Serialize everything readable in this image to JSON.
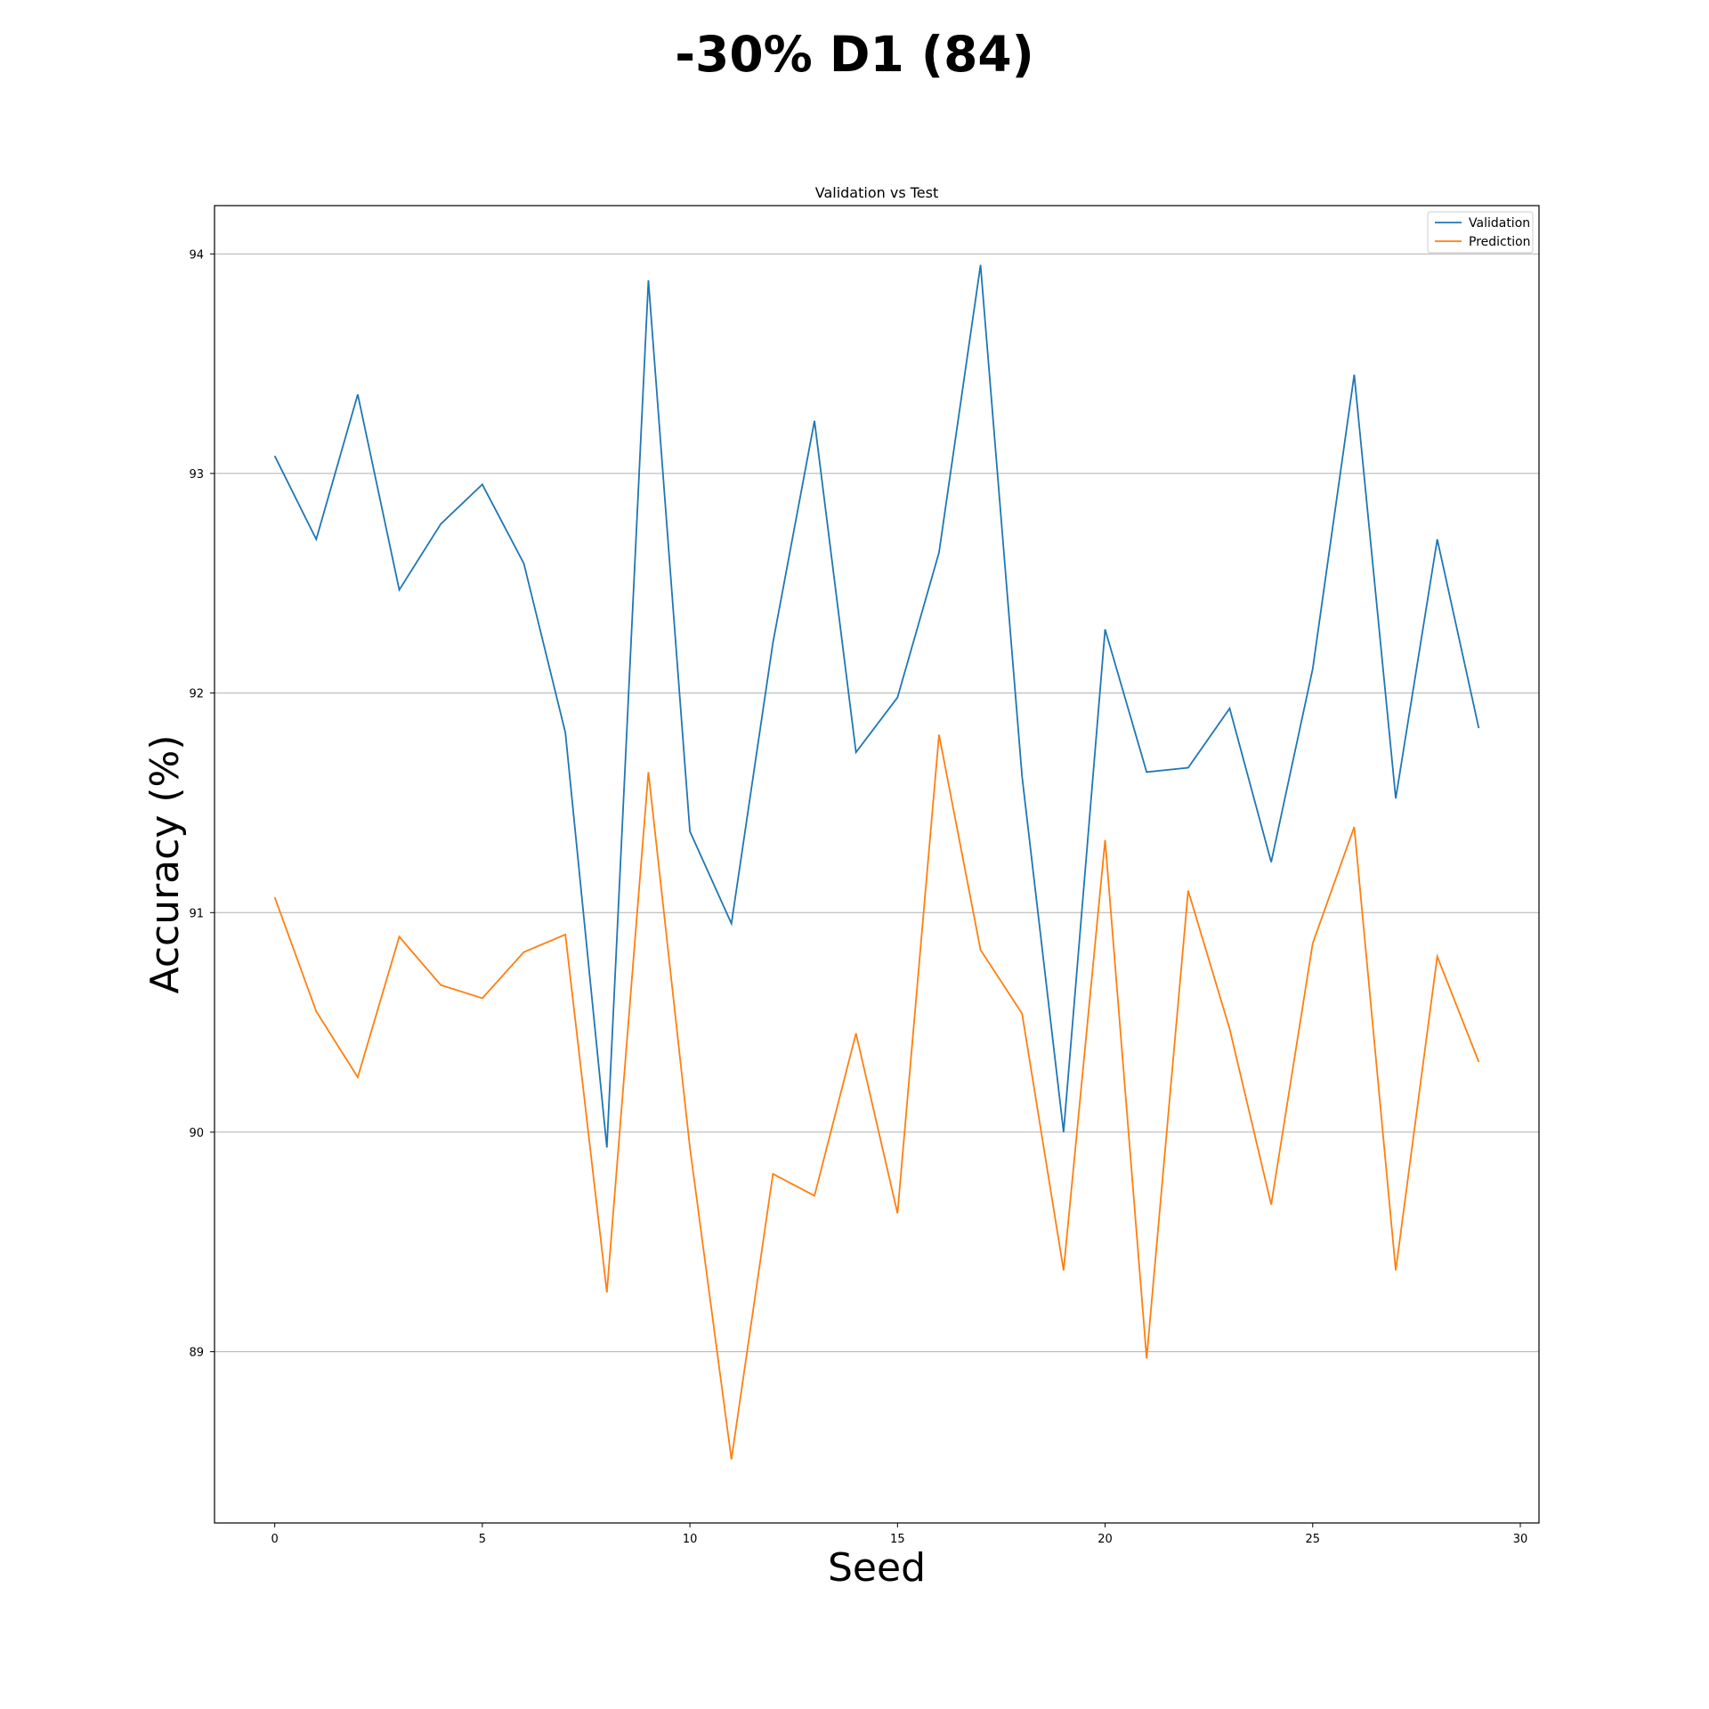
{
  "chart_data": {
    "type": "line",
    "suptitle": "-30% D1 (84)",
    "title": "Validation vs Test",
    "xlabel": "Seed",
    "ylabel": "Accuracy (%)",
    "xlim": [
      -1.45,
      30.45
    ],
    "ylim": [
      88.22,
      94.22
    ],
    "xticks": [
      0,
      5,
      10,
      15,
      20,
      25,
      30
    ],
    "yticks": [
      89,
      90,
      91,
      92,
      93,
      94
    ],
    "grid": "horizontal",
    "legend_position": "top-right",
    "x": [
      0,
      1,
      2,
      3,
      4,
      5,
      6,
      7,
      8,
      9,
      10,
      11,
      12,
      13,
      14,
      15,
      16,
      17,
      18,
      19,
      20,
      21,
      22,
      23,
      24,
      25,
      26,
      27,
      28,
      29
    ],
    "series": [
      {
        "name": "Validation",
        "color": "#1f77b4",
        "values": [
          93.08,
          92.7,
          93.36,
          92.47,
          92.77,
          92.95,
          92.59,
          91.82,
          89.93,
          93.88,
          91.37,
          90.95,
          92.23,
          93.24,
          91.73,
          91.98,
          92.64,
          93.95,
          91.62,
          90.0,
          92.29,
          91.64,
          91.66,
          91.93,
          91.23,
          92.11,
          93.45,
          91.52,
          92.7,
          91.84
        ]
      },
      {
        "name": "Prediction",
        "color": "#ff7f0e",
        "values": [
          91.07,
          90.55,
          90.25,
          90.89,
          90.67,
          90.61,
          90.82,
          90.9,
          89.27,
          91.64,
          89.93,
          88.51,
          89.81,
          89.71,
          90.45,
          89.63,
          91.81,
          90.83,
          90.54,
          89.37,
          91.33,
          88.97,
          91.1,
          90.47,
          89.67,
          90.86,
          91.39,
          89.37,
          90.8,
          90.32
        ]
      }
    ]
  }
}
